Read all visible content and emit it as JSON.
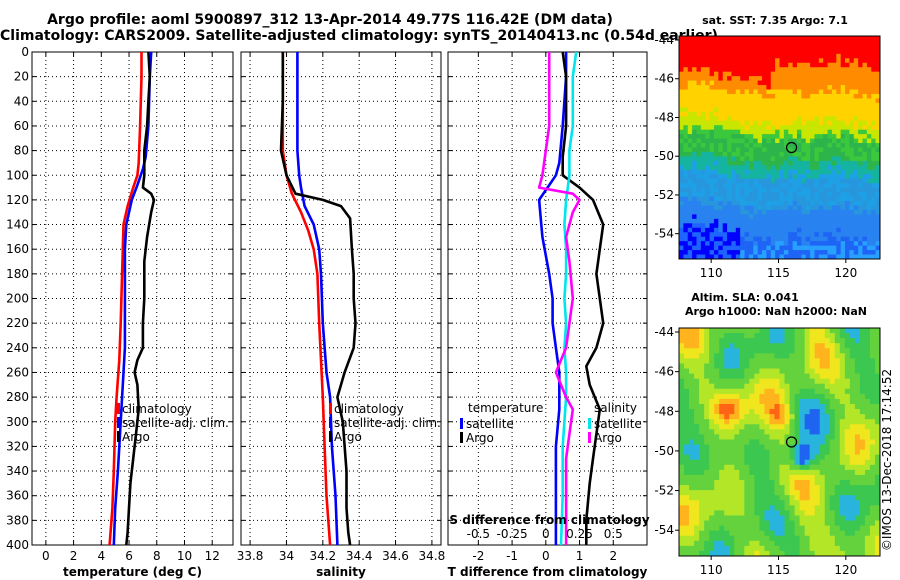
{
  "header": {
    "title_line1": "Argo profile: aoml 5900897_312 13-Apr-2014 49.77S 116.42E (DM data)",
    "title_line2": "Climatology: CARS2009. Satellite-adjusted climatology: synTS_20140413.nc (0.54d earlier)"
  },
  "chart_data": [
    {
      "type": "line",
      "id": "temperature",
      "xlabel": "temperature (deg C)",
      "ylabel": "depth",
      "xlim": [
        -1,
        13.5
      ],
      "ylim": [
        0,
        400
      ],
      "y_reversed": true,
      "x_ticks": [
        0,
        2,
        4,
        6,
        8,
        10,
        12
      ],
      "y_ticks": [
        0,
        20,
        40,
        60,
        80,
        100,
        120,
        140,
        160,
        180,
        200,
        220,
        240,
        260,
        280,
        300,
        320,
        340,
        360,
        380,
        400
      ],
      "grid": true,
      "legend_position": "bottom-center",
      "series": [
        {
          "name": "climatology",
          "color": "#ff0000",
          "points": [
            [
              6.9,
              0
            ],
            [
              6.9,
              20
            ],
            [
              6.8,
              60
            ],
            [
              6.7,
              90
            ],
            [
              6.6,
              100
            ],
            [
              6.3,
              110
            ],
            [
              5.9,
              125
            ],
            [
              5.6,
              140
            ],
            [
              5.5,
              180
            ],
            [
              5.4,
              220
            ],
            [
              5.3,
              250
            ],
            [
              5.1,
              280
            ],
            [
              5.0,
              300
            ],
            [
              4.9,
              340
            ],
            [
              4.8,
              370
            ],
            [
              4.6,
              400
            ]
          ]
        },
        {
          "name": "satellite-adj. clim.",
          "color": "#0000ff",
          "points": [
            [
              7.6,
              0
            ],
            [
              7.5,
              20
            ],
            [
              7.4,
              60
            ],
            [
              7.2,
              85
            ],
            [
              7.0,
              95
            ],
            [
              6.6,
              108
            ],
            [
              6.2,
              120
            ],
            [
              5.8,
              140
            ],
            [
              5.7,
              160
            ],
            [
              5.7,
              180
            ],
            [
              5.7,
              200
            ],
            [
              5.7,
              220
            ],
            [
              5.7,
              240
            ],
            [
              5.6,
              260
            ],
            [
              5.5,
              280
            ],
            [
              5.4,
              300
            ],
            [
              5.2,
              340
            ],
            [
              5.0,
              370
            ],
            [
              4.9,
              400
            ]
          ]
        },
        {
          "name": "Argo",
          "color": "#000000",
          "points": [
            [
              7.4,
              0
            ],
            [
              7.5,
              20
            ],
            [
              7.4,
              40
            ],
            [
              7.3,
              60
            ],
            [
              7.1,
              80
            ],
            [
              7.1,
              100
            ],
            [
              7.0,
              110
            ],
            [
              7.6,
              115
            ],
            [
              7.8,
              120
            ],
            [
              7.6,
              130
            ],
            [
              7.3,
              150
            ],
            [
              7.1,
              170
            ],
            [
              7.1,
              200
            ],
            [
              7.0,
              220
            ],
            [
              7.0,
              240
            ],
            [
              6.6,
              250
            ],
            [
              6.4,
              260
            ],
            [
              6.6,
              270
            ],
            [
              6.7,
              290
            ],
            [
              6.5,
              310
            ],
            [
              6.3,
              330
            ],
            [
              6.1,
              350
            ],
            [
              6.0,
              370
            ],
            [
              5.9,
              390
            ],
            [
              5.8,
              400
            ]
          ]
        }
      ],
      "legend": [
        "climatology",
        "satellite-adj. clim.",
        "Argo"
      ]
    },
    {
      "type": "line",
      "id": "salinity",
      "xlabel": "salinity",
      "ylabel": "depth",
      "xlim": [
        33.75,
        34.85
      ],
      "ylim": [
        0,
        400
      ],
      "y_reversed": true,
      "x_ticks": [
        33.8,
        34,
        34.2,
        34.4,
        34.6,
        34.8
      ],
      "x_tick_labels": [
        "33.8",
        "34",
        "34.2",
        "34.4",
        "34.6",
        "34.8"
      ],
      "grid": true,
      "legend_position": "bottom-center",
      "series": [
        {
          "name": "climatology",
          "color": "#ff0000",
          "points": [
            [
              33.98,
              0
            ],
            [
              33.98,
              40
            ],
            [
              33.98,
              80
            ],
            [
              34.0,
              100
            ],
            [
              34.03,
              115
            ],
            [
              34.08,
              130
            ],
            [
              34.12,
              145
            ],
            [
              34.15,
              160
            ],
            [
              34.17,
              180
            ],
            [
              34.18,
              220
            ],
            [
              34.19,
              250
            ],
            [
              34.2,
              280
            ],
            [
              34.21,
              320
            ],
            [
              34.22,
              360
            ],
            [
              34.23,
              380
            ],
            [
              34.24,
              400
            ]
          ]
        },
        {
          "name": "satellite-adj. clim.",
          "color": "#0000ff",
          "points": [
            [
              34.06,
              0
            ],
            [
              34.06,
              40
            ],
            [
              34.06,
              80
            ],
            [
              34.07,
              100
            ],
            [
              34.08,
              110
            ],
            [
              34.1,
              125
            ],
            [
              34.15,
              140
            ],
            [
              34.18,
              160
            ],
            [
              34.19,
              180
            ],
            [
              34.2,
              220
            ],
            [
              34.22,
              260
            ],
            [
              34.24,
              280
            ],
            [
              34.25,
              320
            ],
            [
              34.27,
              360
            ],
            [
              34.28,
              400
            ]
          ]
        },
        {
          "name": "Argo",
          "color": "#000000",
          "points": [
            [
              33.98,
              0
            ],
            [
              33.98,
              40
            ],
            [
              33.97,
              80
            ],
            [
              34.0,
              100
            ],
            [
              34.05,
              115
            ],
            [
              34.2,
              120
            ],
            [
              34.3,
              125
            ],
            [
              34.35,
              135
            ],
            [
              34.36,
              160
            ],
            [
              34.37,
              180
            ],
            [
              34.37,
              200
            ],
            [
              34.38,
              220
            ],
            [
              34.37,
              240
            ],
            [
              34.32,
              260
            ],
            [
              34.28,
              280
            ],
            [
              34.31,
              300
            ],
            [
              34.33,
              340
            ],
            [
              34.33,
              370
            ],
            [
              34.34,
              390
            ],
            [
              34.35,
              400
            ]
          ]
        }
      ],
      "legend": [
        "climatology",
        "satellite-adj. clim.",
        "Argo"
      ]
    },
    {
      "type": "line",
      "id": "difference",
      "xlabel": "T difference from climatology",
      "xlabel_top": "S difference from climatology",
      "ylabel": "depth",
      "xlim": [
        -2.9,
        3.0
      ],
      "ylim": [
        0,
        400
      ],
      "y_reversed": true,
      "x_ticks": [
        -2,
        -1,
        0,
        1,
        2
      ],
      "x_tick_labels": [
        "-2",
        "-1",
        "0",
        "1",
        "2"
      ],
      "s_ticks": [
        -0.5,
        -0.25,
        0,
        0.25,
        0.5
      ],
      "s_tick_labels": [
        "-0.5",
        "-0.25",
        "0",
        "0.25",
        "0.5"
      ],
      "s_scale": 4,
      "grid": true,
      "legend_position": "bottom",
      "legend_temperature_title": "temperature",
      "legend_salinity_title": "salinity",
      "legend_temperature": [
        "satellite",
        "Argo"
      ],
      "legend_salinity": [
        "satellite",
        "Argo"
      ],
      "series": [
        {
          "name": "T satellite",
          "color": "#0000ff",
          "points": [
            [
              0.6,
              0
            ],
            [
              0.6,
              20
            ],
            [
              0.5,
              60
            ],
            [
              0.4,
              90
            ],
            [
              0.3,
              100
            ],
            [
              0.1,
              108
            ],
            [
              -0.2,
              120
            ],
            [
              -0.1,
              150
            ],
            [
              0.1,
              180
            ],
            [
              0.2,
              200
            ],
            [
              0.2,
              220
            ],
            [
              0.3,
              240
            ],
            [
              0.4,
              260
            ],
            [
              0.4,
              290
            ],
            [
              0.3,
              320
            ],
            [
              0.3,
              350
            ],
            [
              0.3,
              400
            ]
          ]
        },
        {
          "name": "T Argo",
          "color": "#000000",
          "points": [
            [
              0.5,
              0
            ],
            [
              0.6,
              20
            ],
            [
              0.6,
              60
            ],
            [
              0.5,
              85
            ],
            [
              0.5,
              100
            ],
            [
              1.0,
              110
            ],
            [
              1.4,
              120
            ],
            [
              1.7,
              140
            ],
            [
              1.6,
              160
            ],
            [
              1.5,
              180
            ],
            [
              1.6,
              200
            ],
            [
              1.7,
              220
            ],
            [
              1.5,
              240
            ],
            [
              1.2,
              255
            ],
            [
              1.3,
              270
            ],
            [
              1.6,
              290
            ],
            [
              1.5,
              310
            ],
            [
              1.4,
              330
            ],
            [
              1.3,
              350
            ],
            [
              1.2,
              380
            ],
            [
              1.2,
              400
            ]
          ]
        },
        {
          "name": "S satellite",
          "color": "#00e5ee",
          "points": [
            [
              0.9,
              0
            ],
            [
              0.8,
              20
            ],
            [
              0.8,
              60
            ],
            [
              0.7,
              80
            ],
            [
              0.7,
              100
            ],
            [
              0.6,
              120
            ],
            [
              0.55,
              140
            ],
            [
              0.6,
              160
            ],
            [
              0.6,
              180
            ],
            [
              0.55,
              200
            ],
            [
              0.6,
              220
            ],
            [
              0.55,
              240
            ],
            [
              0.6,
              260
            ],
            [
              0.6,
              280
            ],
            [
              0.55,
              300
            ],
            [
              0.5,
              320
            ],
            [
              0.5,
              360
            ],
            [
              0.45,
              400
            ]
          ]
        },
        {
          "name": "S Argo",
          "color": "#ff00ff",
          "points": [
            [
              0.1,
              0
            ],
            [
              0.1,
              20
            ],
            [
              0.1,
              60
            ],
            [
              0.0,
              80
            ],
            [
              -0.1,
              100
            ],
            [
              -0.2,
              110
            ],
            [
              0.8,
              115
            ],
            [
              1.0,
              120
            ],
            [
              0.8,
              130
            ],
            [
              0.6,
              150
            ],
            [
              0.7,
              170
            ],
            [
              0.8,
              200
            ],
            [
              0.7,
              220
            ],
            [
              0.6,
              240
            ],
            [
              0.3,
              260
            ],
            [
              0.6,
              280
            ],
            [
              0.8,
              290
            ],
            [
              0.7,
              310
            ],
            [
              0.6,
              330
            ],
            [
              0.6,
              360
            ],
            [
              0.6,
              400
            ]
          ]
        }
      ]
    }
  ],
  "maps": {
    "sst": {
      "title": "sat. SST: 7.35 Argo: 7.1",
      "y_ticks": [
        "-44",
        "-46",
        "-48",
        "-50",
        "-52",
        "-54"
      ],
      "x_ticks": [
        "110",
        "115",
        "120"
      ]
    },
    "sla": {
      "title_line1": "Altim. SLA: 0.041",
      "title_line2": "Argo h1000: NaN h2000: NaN",
      "y_ticks": [
        "-44",
        "-46",
        "-48",
        "-50",
        "-52",
        "-54"
      ],
      "x_ticks": [
        "110",
        "115",
        "120"
      ]
    },
    "watermark": "©IMOS 13-Dec-2018 17:14:52"
  },
  "colors": {
    "climatology": "#ff0000",
    "satellite_adj": "#0000ff",
    "argo": "#000000",
    "s_satellite": "#00e5ee",
    "s_argo": "#ff00ff"
  }
}
